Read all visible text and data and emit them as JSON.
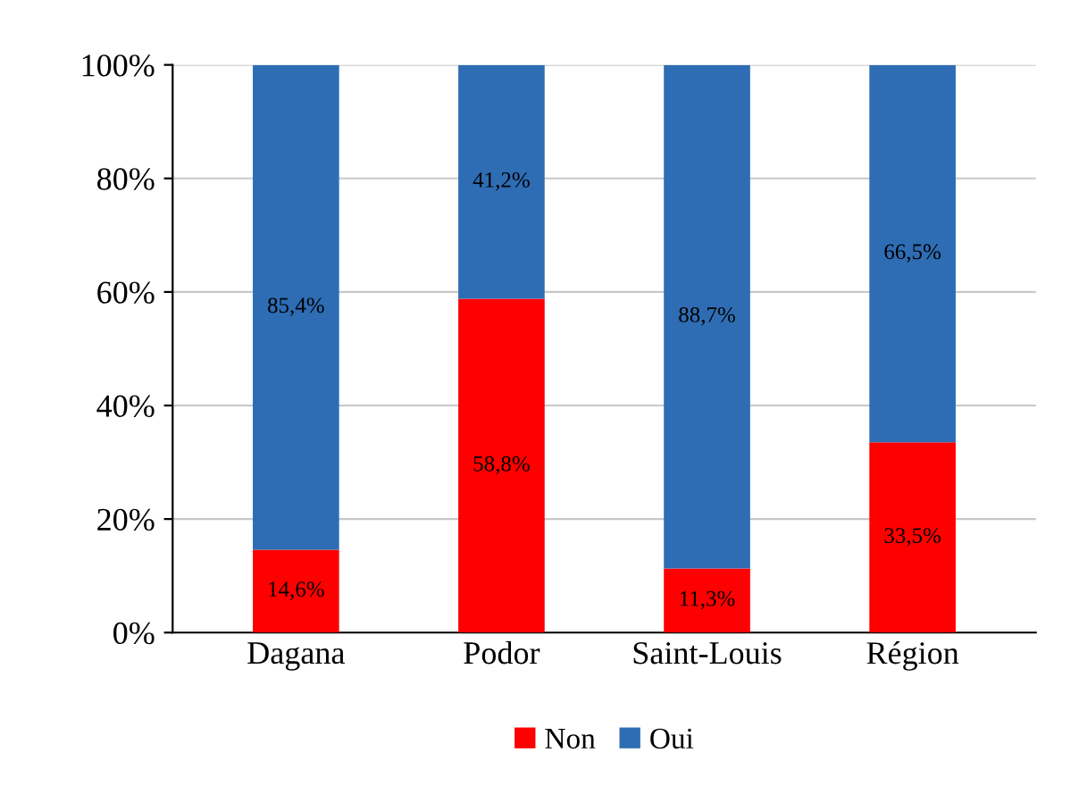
{
  "chart_data": {
    "type": "bar",
    "stacked": true,
    "categories": [
      "Dagana",
      "Podor",
      "Saint-Louis",
      "Région"
    ],
    "series": [
      {
        "name": "Non",
        "color": "#ff0000",
        "values": [
          14.6,
          58.8,
          11.3,
          33.5
        ],
        "value_labels": [
          "14,6%",
          "58,8%",
          "11,3%",
          "33,5%"
        ]
      },
      {
        "name": "Oui",
        "color": "#2e6db4",
        "values": [
          85.4,
          41.2,
          88.7,
          66.5
        ],
        "value_labels": [
          "85,4%",
          "41,2%",
          "88,7%",
          "66,5%"
        ]
      }
    ],
    "ylim": [
      0,
      100
    ],
    "yticks": [
      {
        "value": 0,
        "label": "0%"
      },
      {
        "value": 20,
        "label": "20%"
      },
      {
        "value": 40,
        "label": "40%"
      },
      {
        "value": 60,
        "label": "60%"
      },
      {
        "value": 80,
        "label": "80%"
      },
      {
        "value": 100,
        "label": "100%"
      }
    ],
    "grid": "y",
    "legend": "bottom"
  }
}
